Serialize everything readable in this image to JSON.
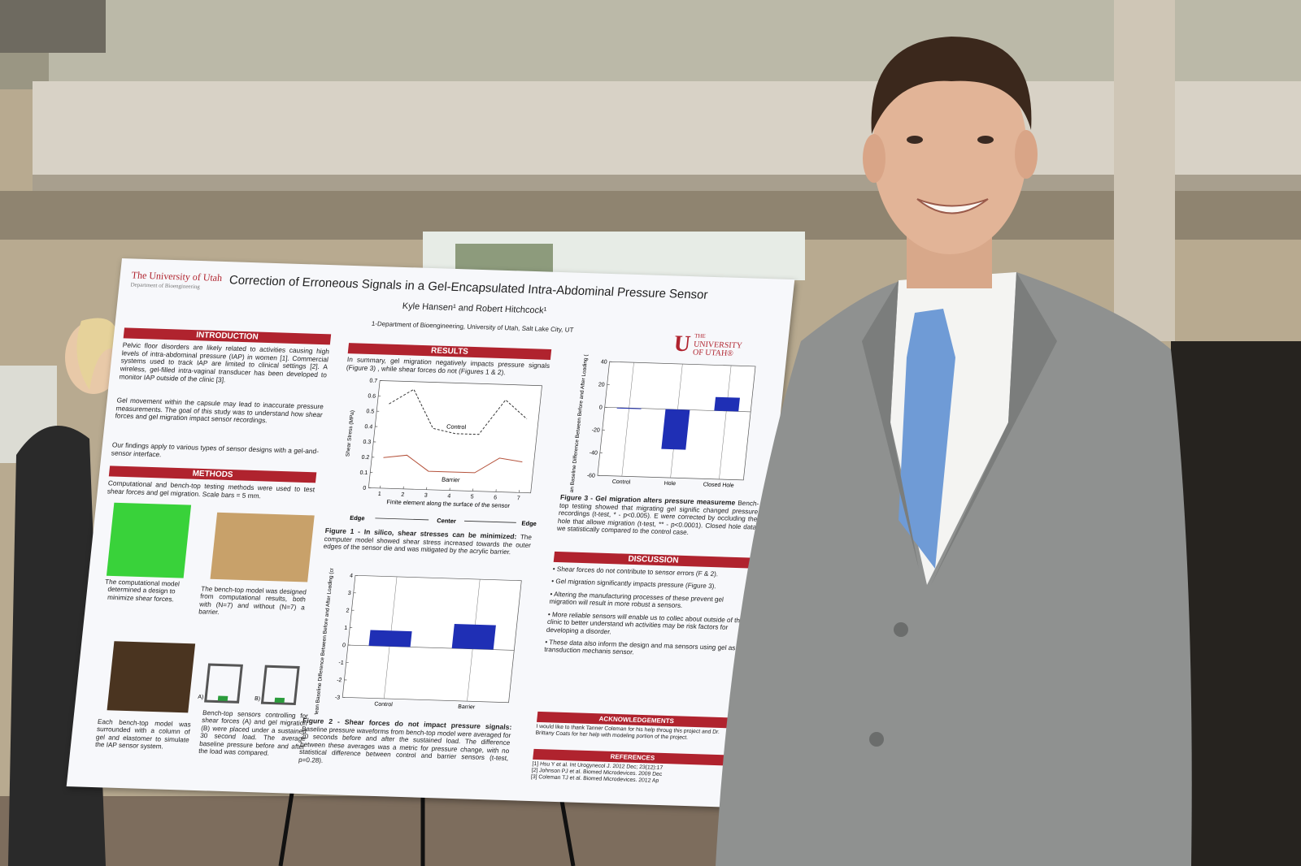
{
  "poster": {
    "logo_left": "The University of Utah",
    "department": "Department of Bioengineering",
    "title": "Correction of Erroneous Signals in a Gel-Encapsulated Intra-Abdominal Pressure Sensor",
    "authors": "Kyle Hansen¹ and Robert Hitchcock¹",
    "affiliation": "1-Department of Bioengineering, University of Utah, Salt Lake City, UT",
    "logo_right": {
      "small": "THE",
      "line1": "UNIVERSITY",
      "line2": "OF UTAH®"
    },
    "introduction": {
      "heading": "INTRODUCTION",
      "paragraphs": [
        "Pelvic floor disorders are likely related to activities causing high levels of intra-abdominal pressure (IAP) in women [1]. Commercial systems used to track IAP are limited to clinical settings [2]. A wireless, gel-filled intra-vaginal transducer has been developed to monitor IAP outside of the clinic [3].",
        "Gel movement within the capsule may lead to inaccurate pressure measurements. The goal of this study was to understand how shear forces and gel migration impact sensor recordings.",
        "Our findings apply to various types of sensor designs with a gel-and-sensor interface."
      ]
    },
    "methods": {
      "heading": "METHODS",
      "text": "Computational and bench-top testing methods were used to test shear forces and gel migration. Scale bars = 5 mm.",
      "captions": [
        "The computational model determined a design to minimize shear forces.",
        "The bench-top model was designed from computational results, both with (N=7) and without (N=7) a barrier.",
        "Each bench-top model was surrounded with a column of gel and elastomer to simulate the IAP sensor system.",
        "Bench-top sensors controlling for shear forces (A) and gel migration (B) were placed under a sustained 30 second load. The average baseline pressure before and after the load was compared."
      ],
      "panel_labels": [
        "A)",
        "B)"
      ]
    },
    "results": {
      "heading": "RESULTS",
      "text": "In summary, gel migration negatively impacts pressure signals (Figure 3) , while shear forces do not (Figures 1 & 2)."
    },
    "figure1": {
      "type": "line",
      "ylabel": "Shear Stress (MPa)",
      "xlabel": "Finite element along the surface of the sensor",
      "x": [
        1,
        2,
        3,
        4,
        5,
        6,
        7
      ],
      "xlim": [
        0.5,
        7.5
      ],
      "xticks": [
        1,
        2,
        3,
        4,
        5,
        6,
        7
      ],
      "ylim": [
        0,
        0.7
      ],
      "yticks": [
        0,
        0.1,
        0.2,
        0.3,
        0.4,
        0.5,
        0.6,
        0.7
      ],
      "series": [
        {
          "name": "Control",
          "color": "#333333",
          "dash": true,
          "values": [
            0.55,
            0.65,
            0.4,
            0.37,
            0.37,
            0.6,
            0.48
          ]
        },
        {
          "name": "Barrier",
          "color": "#b5533c",
          "dash": false,
          "values": [
            0.2,
            0.22,
            0.12,
            0.12,
            0.12,
            0.22,
            0.2
          ]
        }
      ],
      "region_labels": [
        "Edge",
        "Center",
        "Edge"
      ],
      "caption_title": "Figure 1 - In silico, shear stresses can be minimized:",
      "caption": "The computer model showed shear stress increased towards the outer edges of the sensor die and was mitigated by the acrylic barrier."
    },
    "figure2": {
      "type": "bar",
      "ylabel": "Mean Baseline Difference Between Before and After Loading (cmH₂O)",
      "categories": [
        "Control",
        "Barrier"
      ],
      "values": [
        0.9,
        1.4
      ],
      "color": "#1f2fb5",
      "ylim": [
        -3,
        4
      ],
      "yticks": [
        -3,
        -2,
        -1,
        0,
        1,
        2,
        3,
        4
      ],
      "caption_title": "Figure 2 - Shear forces do not impact pressure signals:",
      "caption": "Baseline pressure waveforms from bench-top model were averaged for 20 seconds before and after the sustained load. The difference between these averages was a metric for pressure change, with no statistical difference between control and barrier sensors (t-test, p=0.28)."
    },
    "figure3": {
      "type": "bar",
      "ylabel": "Mean Baseline Difference Between Before and After Loading (cmH₂O)",
      "categories": [
        "Control",
        "Hole",
        "Closed Hole"
      ],
      "values": [
        0,
        -35,
        12
      ],
      "color": "#1f2fb5",
      "ylim": [
        -60,
        40
      ],
      "yticks": [
        -60,
        -40,
        -20,
        0,
        20,
        40
      ],
      "caption_title": "Figure 3 - Gel migration alters pressure measureme",
      "caption": "Bench-top testing showed that migrating gel signific changed pressure recordings (t-test, * - p<0.005). E were corrected by occluding the hole that allowe migration (t-test, ** - p<0.0001). Closed hole data we statistically compared to the control case."
    },
    "discussion": {
      "heading": "DISCUSSION",
      "bullets": [
        "• Shear forces do not contribute to sensor errors (F & 2).",
        "• Gel migration significantly impacts pressure (Figure 3).",
        "• Altering the manufacturing processes of these prevent gel migration will result in more robust a sensors.",
        "• More reliable sensors will enable us to collec about outside of the clinic to better understand wh activities may be risk factors for developing a disorder.",
        "• These data also inform the design and ma sensors using gel as a transduction mechanis sensor."
      ]
    },
    "acknowledgements": {
      "heading": "ACKNOWLEDGEMENTS",
      "text": "I would like to thank Tanner Coleman for his help throug this project and Dr. Brittany Coats for her help with modeling portion of the project."
    },
    "references": {
      "heading": "REFERENCES",
      "items": [
        "[1] Hsu Y et al. Int Urogynecol J. 2012 Dec; 23(12):17",
        "[2] Johnson PJ et al. Biomed Microdevices. 2009 Dec",
        "[3] Coleman TJ et al. Biomed Microdevices. 2012 Ap"
      ]
    }
  }
}
